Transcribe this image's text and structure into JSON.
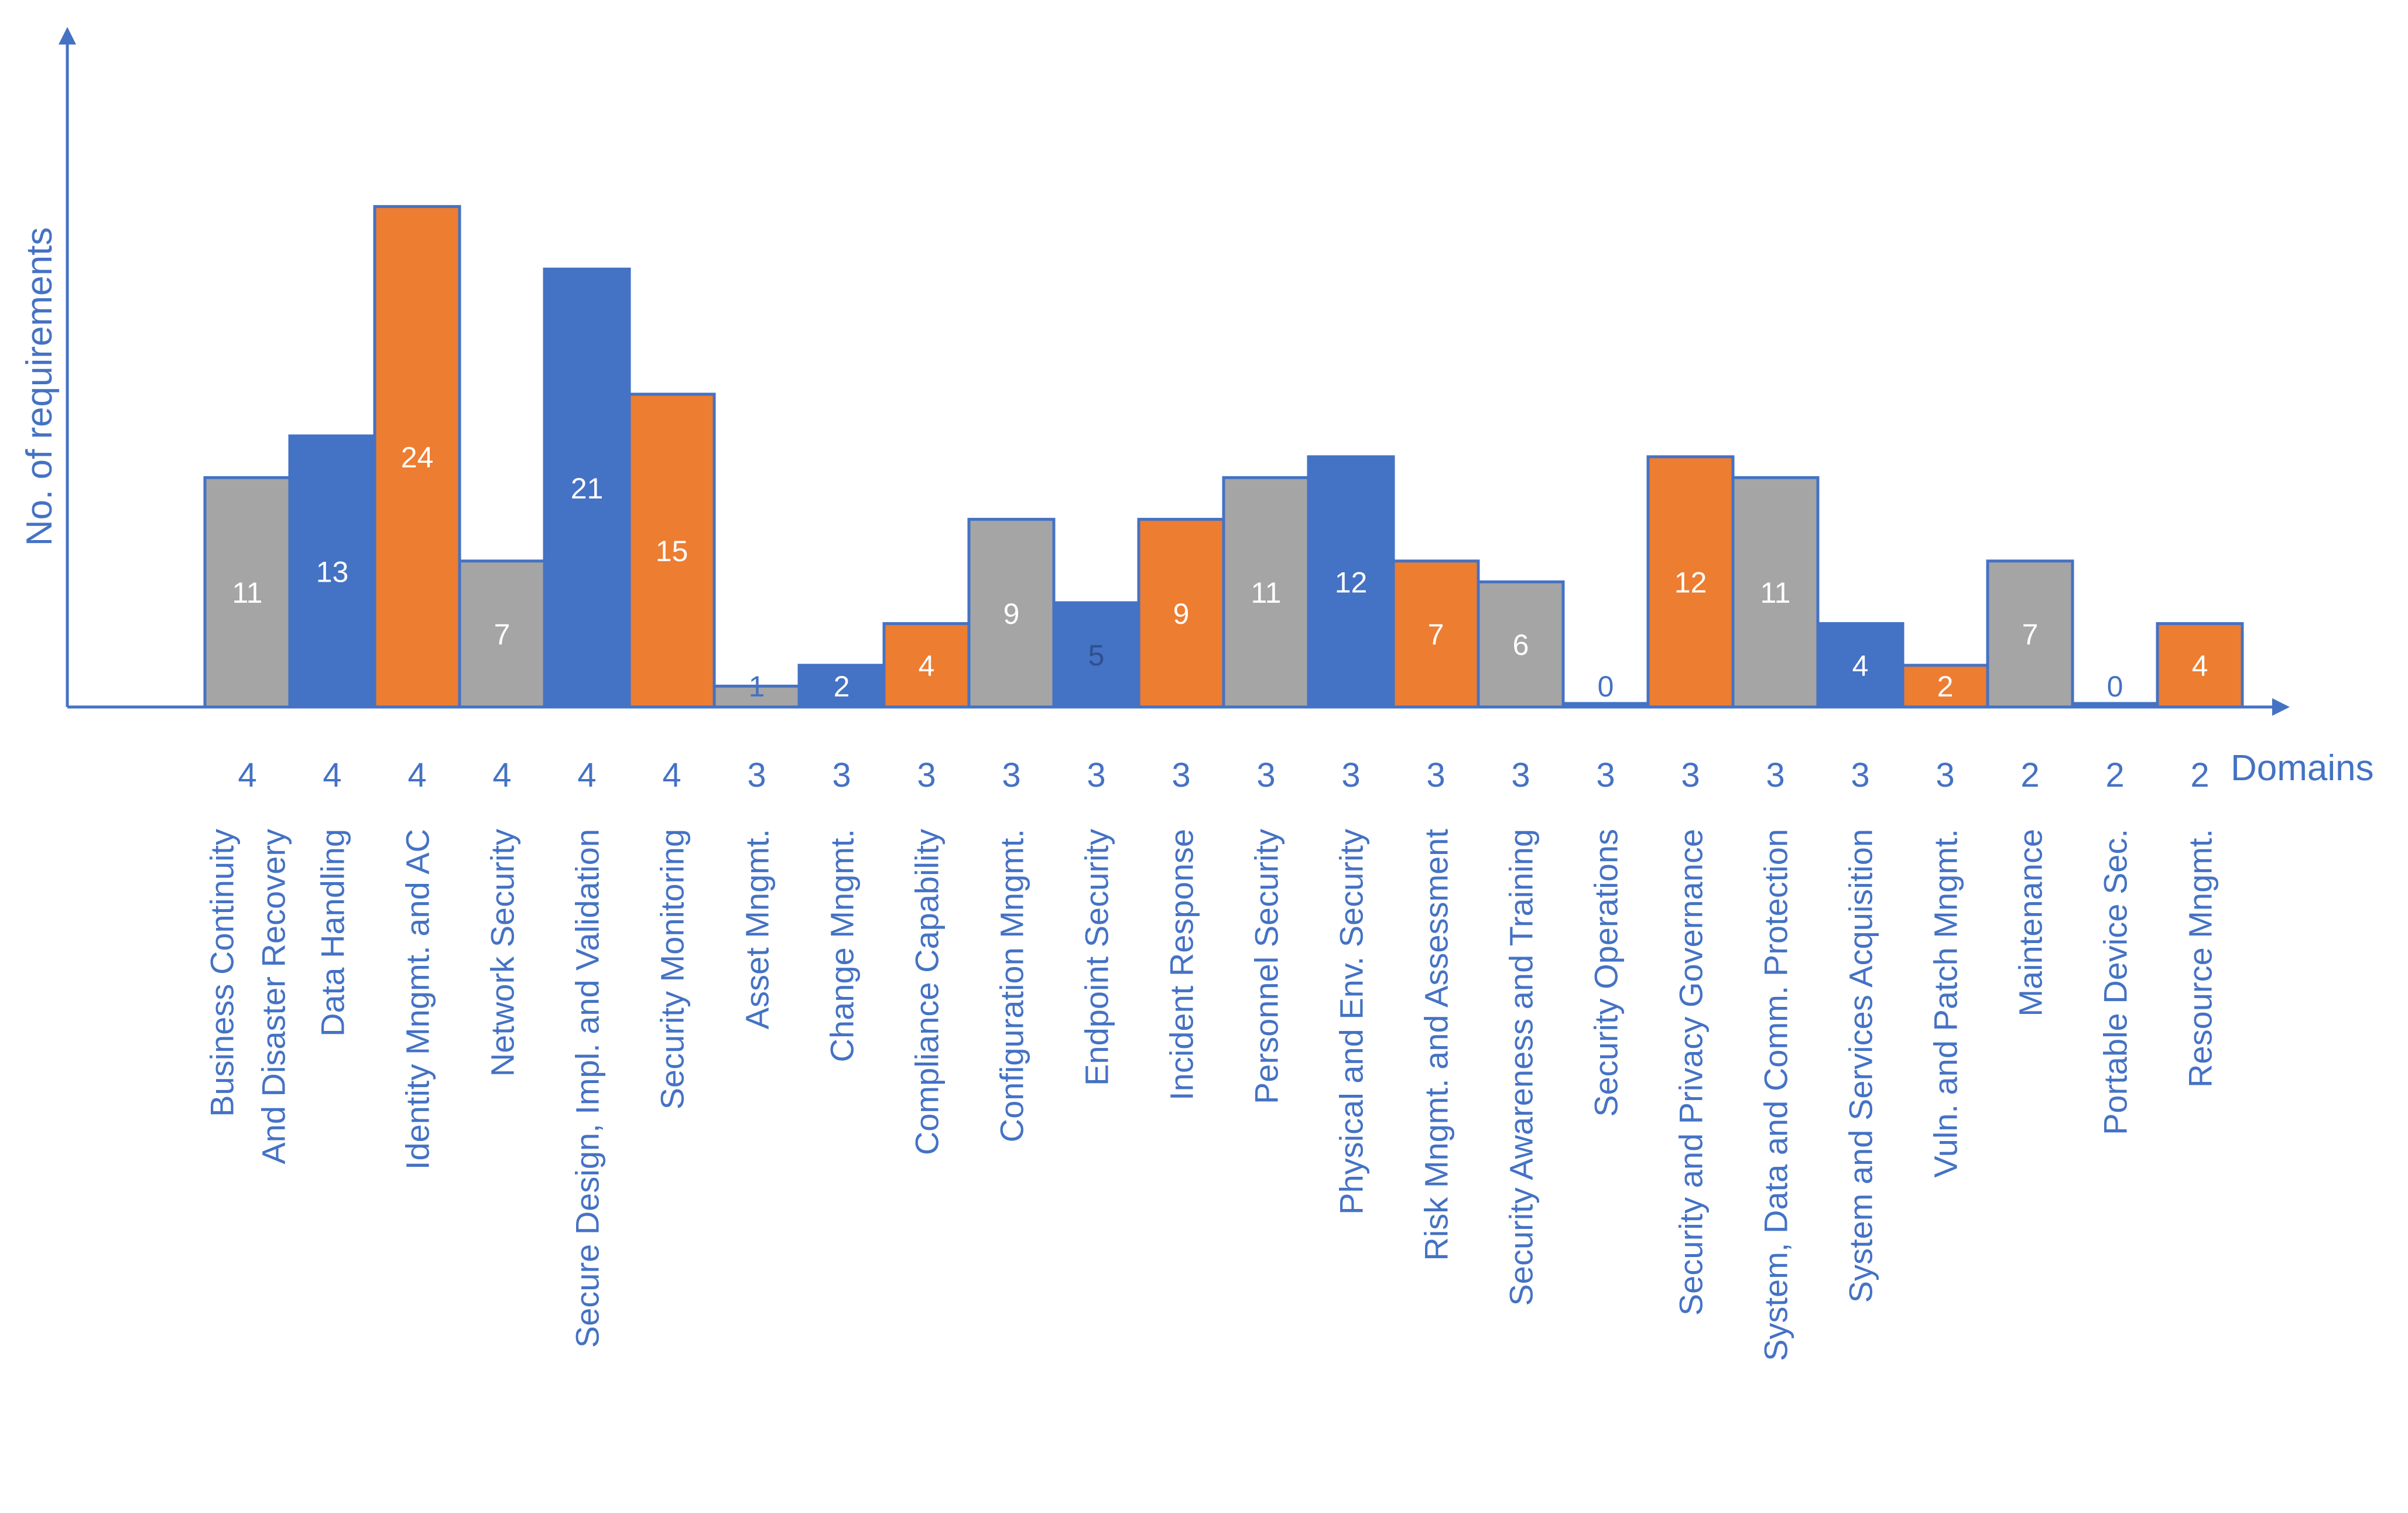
{
  "chart_data": {
    "type": "bar",
    "xlabel": "Domains",
    "ylabel": "No. of requirements",
    "ylim": [
      0,
      26
    ],
    "grid": false,
    "colors": {
      "gray": "#a5a5a5",
      "blue": "#4472c4",
      "orange": "#ed7d31",
      "axis": "#4472c4",
      "label_blue": "#4472c4",
      "label_white": "#ffffff"
    },
    "bars": [
      {
        "category": [
          "Business Continuity",
          "And Disaster Recovery"
        ],
        "value": 11,
        "domains": 4,
        "color": "gray"
      },
      {
        "category": [
          "Data Handling"
        ],
        "value": 13,
        "domains": 4,
        "color": "blue"
      },
      {
        "category": [
          "Identity Mngmt. and AC"
        ],
        "value": 24,
        "domains": 4,
        "color": "orange"
      },
      {
        "category": [
          "Network Security"
        ],
        "value": 7,
        "domains": 4,
        "color": "gray"
      },
      {
        "category": [
          "Secure Design, Impl. and Validation"
        ],
        "value": 21,
        "domains": 4,
        "color": "blue"
      },
      {
        "category": [
          "Security Monitoring"
        ],
        "value": 15,
        "domains": 4,
        "color": "orange"
      },
      {
        "category": [
          "Asset Mngmt."
        ],
        "value": 1,
        "domains": 3,
        "color": "gray"
      },
      {
        "category": [
          "Change Mngmt."
        ],
        "value": 2,
        "domains": 3,
        "color": "blue"
      },
      {
        "category": [
          "Compliance Capability"
        ],
        "value": 4,
        "domains": 3,
        "color": "orange"
      },
      {
        "category": [
          "Configuration Mngmt."
        ],
        "value": 9,
        "domains": 3,
        "color": "gray"
      },
      {
        "category": [
          "Endpoint Security"
        ],
        "value": 5,
        "domains": 3,
        "color": "blue"
      },
      {
        "category": [
          "Incident Response"
        ],
        "value": 9,
        "domains": 3,
        "color": "orange"
      },
      {
        "category": [
          "Personnel Security"
        ],
        "value": 11,
        "domains": 3,
        "color": "gray"
      },
      {
        "category": [
          "Physical and Env. Security"
        ],
        "value": 12,
        "domains": 3,
        "color": "blue"
      },
      {
        "category": [
          "Risk Mngmt. and Assessment"
        ],
        "value": 7,
        "domains": 3,
        "color": "orange"
      },
      {
        "category": [
          "Security Awareness and Training"
        ],
        "value": 6,
        "domains": 3,
        "color": "gray"
      },
      {
        "category": [
          "Security Operations"
        ],
        "value": 0,
        "domains": 3,
        "color": "blue"
      },
      {
        "category": [
          "Security and Privacy Governance"
        ],
        "value": 12,
        "domains": 3,
        "color": "orange"
      },
      {
        "category": [
          "System, Data and Comm. Protection"
        ],
        "value": 11,
        "domains": 3,
        "color": "gray"
      },
      {
        "category": [
          "System and Services Acquisition"
        ],
        "value": 4,
        "domains": 3,
        "color": "blue"
      },
      {
        "category": [
          "Vuln. and Patch Mngmt."
        ],
        "value": 2,
        "domains": 3,
        "color": "orange"
      },
      {
        "category": [
          "Maintenance"
        ],
        "value": 7,
        "domains": 2,
        "color": "gray"
      },
      {
        "category": [
          "Portable Device Sec."
        ],
        "value": 0,
        "domains": 2,
        "color": "blue"
      },
      {
        "category": [
          "Resource Mngmt."
        ],
        "value": 4,
        "domains": 2,
        "color": "orange"
      }
    ]
  }
}
